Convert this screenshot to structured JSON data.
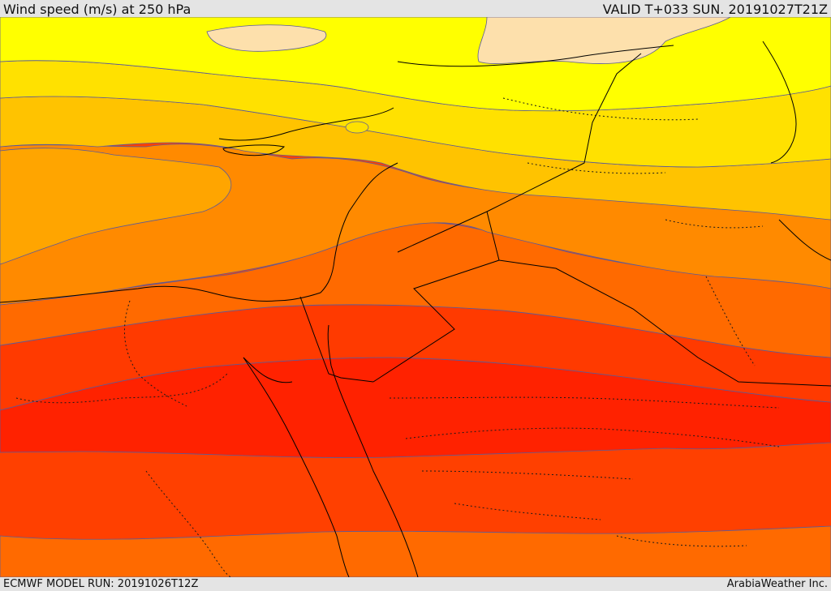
{
  "header": {
    "title": "Wind speed (m/s) at 250 hPa",
    "valid_time": "VALID T+033 SUN. 20191027T21Z"
  },
  "footer": {
    "model_run": "ECMWF MODEL RUN: 20191026T12Z",
    "credit": "ArabiaWeather Inc."
  },
  "colors": {
    "band_1_pale": "#fde0ac",
    "band_2_yellow": "#ffff00",
    "band_3_gold": "#ffe100",
    "band_4_amber": "#ffc300",
    "band_5_orange_light": "#ffa500",
    "band_6_orange": "#ff8a00",
    "band_7_orange_dark": "#ff6b00",
    "band_8_red_orange": "#ff4d00",
    "band_9_red": "#ff3300",
    "band_10_core": "#ff2200",
    "contour_line": "#5a5a9a",
    "coastline": "#000000",
    "border_dotted": "#1a1a1a"
  }
}
